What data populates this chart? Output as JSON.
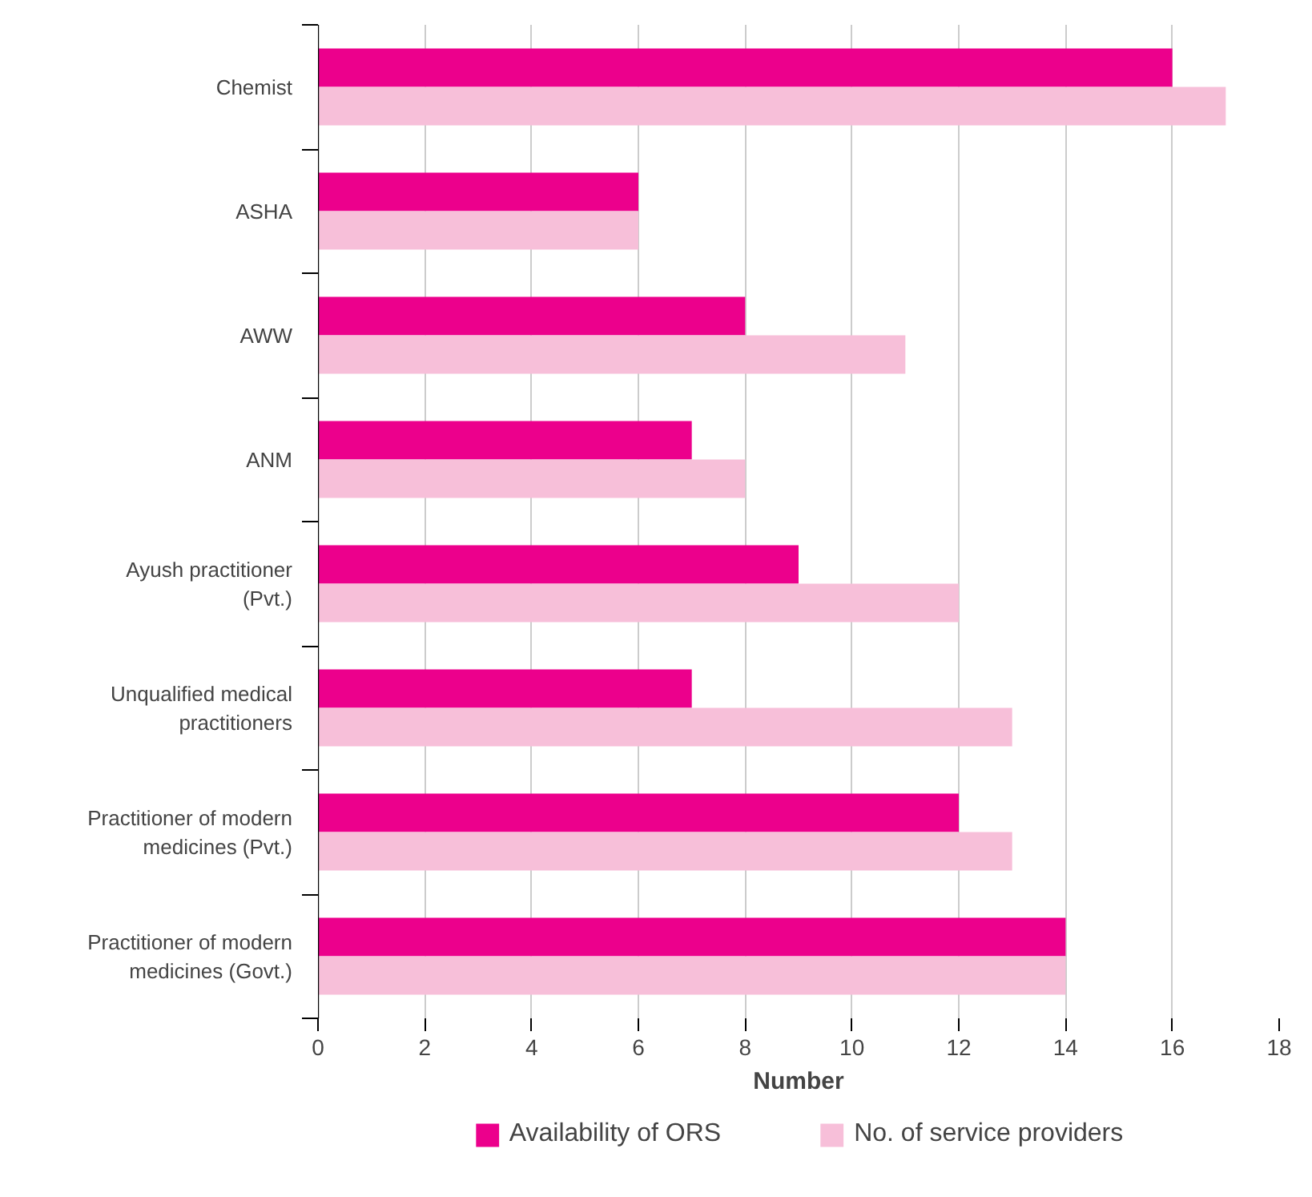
{
  "chart_data": {
    "type": "bar",
    "orientation": "horizontal",
    "xlabel": "Number",
    "categories": [
      "Chemist",
      "ASHA",
      "AWW",
      "ANM",
      "Ayush practitioner\n(Pvt.)",
      "Unqualified medical\npractitioners",
      "Practitioner of modern\nmedicines (Pvt.)",
      "Practitioner of modern\nmedicines (Govt.)"
    ],
    "series": [
      {
        "name": "Availability of ORS",
        "color": "#ec008c",
        "values": [
          16,
          6,
          8,
          7,
          9,
          7,
          12,
          14
        ]
      },
      {
        "name": "No. of service providers",
        "color": "#f7bfd9",
        "values": [
          17,
          6,
          11,
          8,
          12,
          13,
          13,
          14
        ]
      }
    ],
    "xlim": [
      0,
      18
    ],
    "xticks": [
      0,
      2,
      4,
      6,
      8,
      10,
      12,
      14,
      16,
      18
    ],
    "grid": "x",
    "legend": "bottom"
  }
}
